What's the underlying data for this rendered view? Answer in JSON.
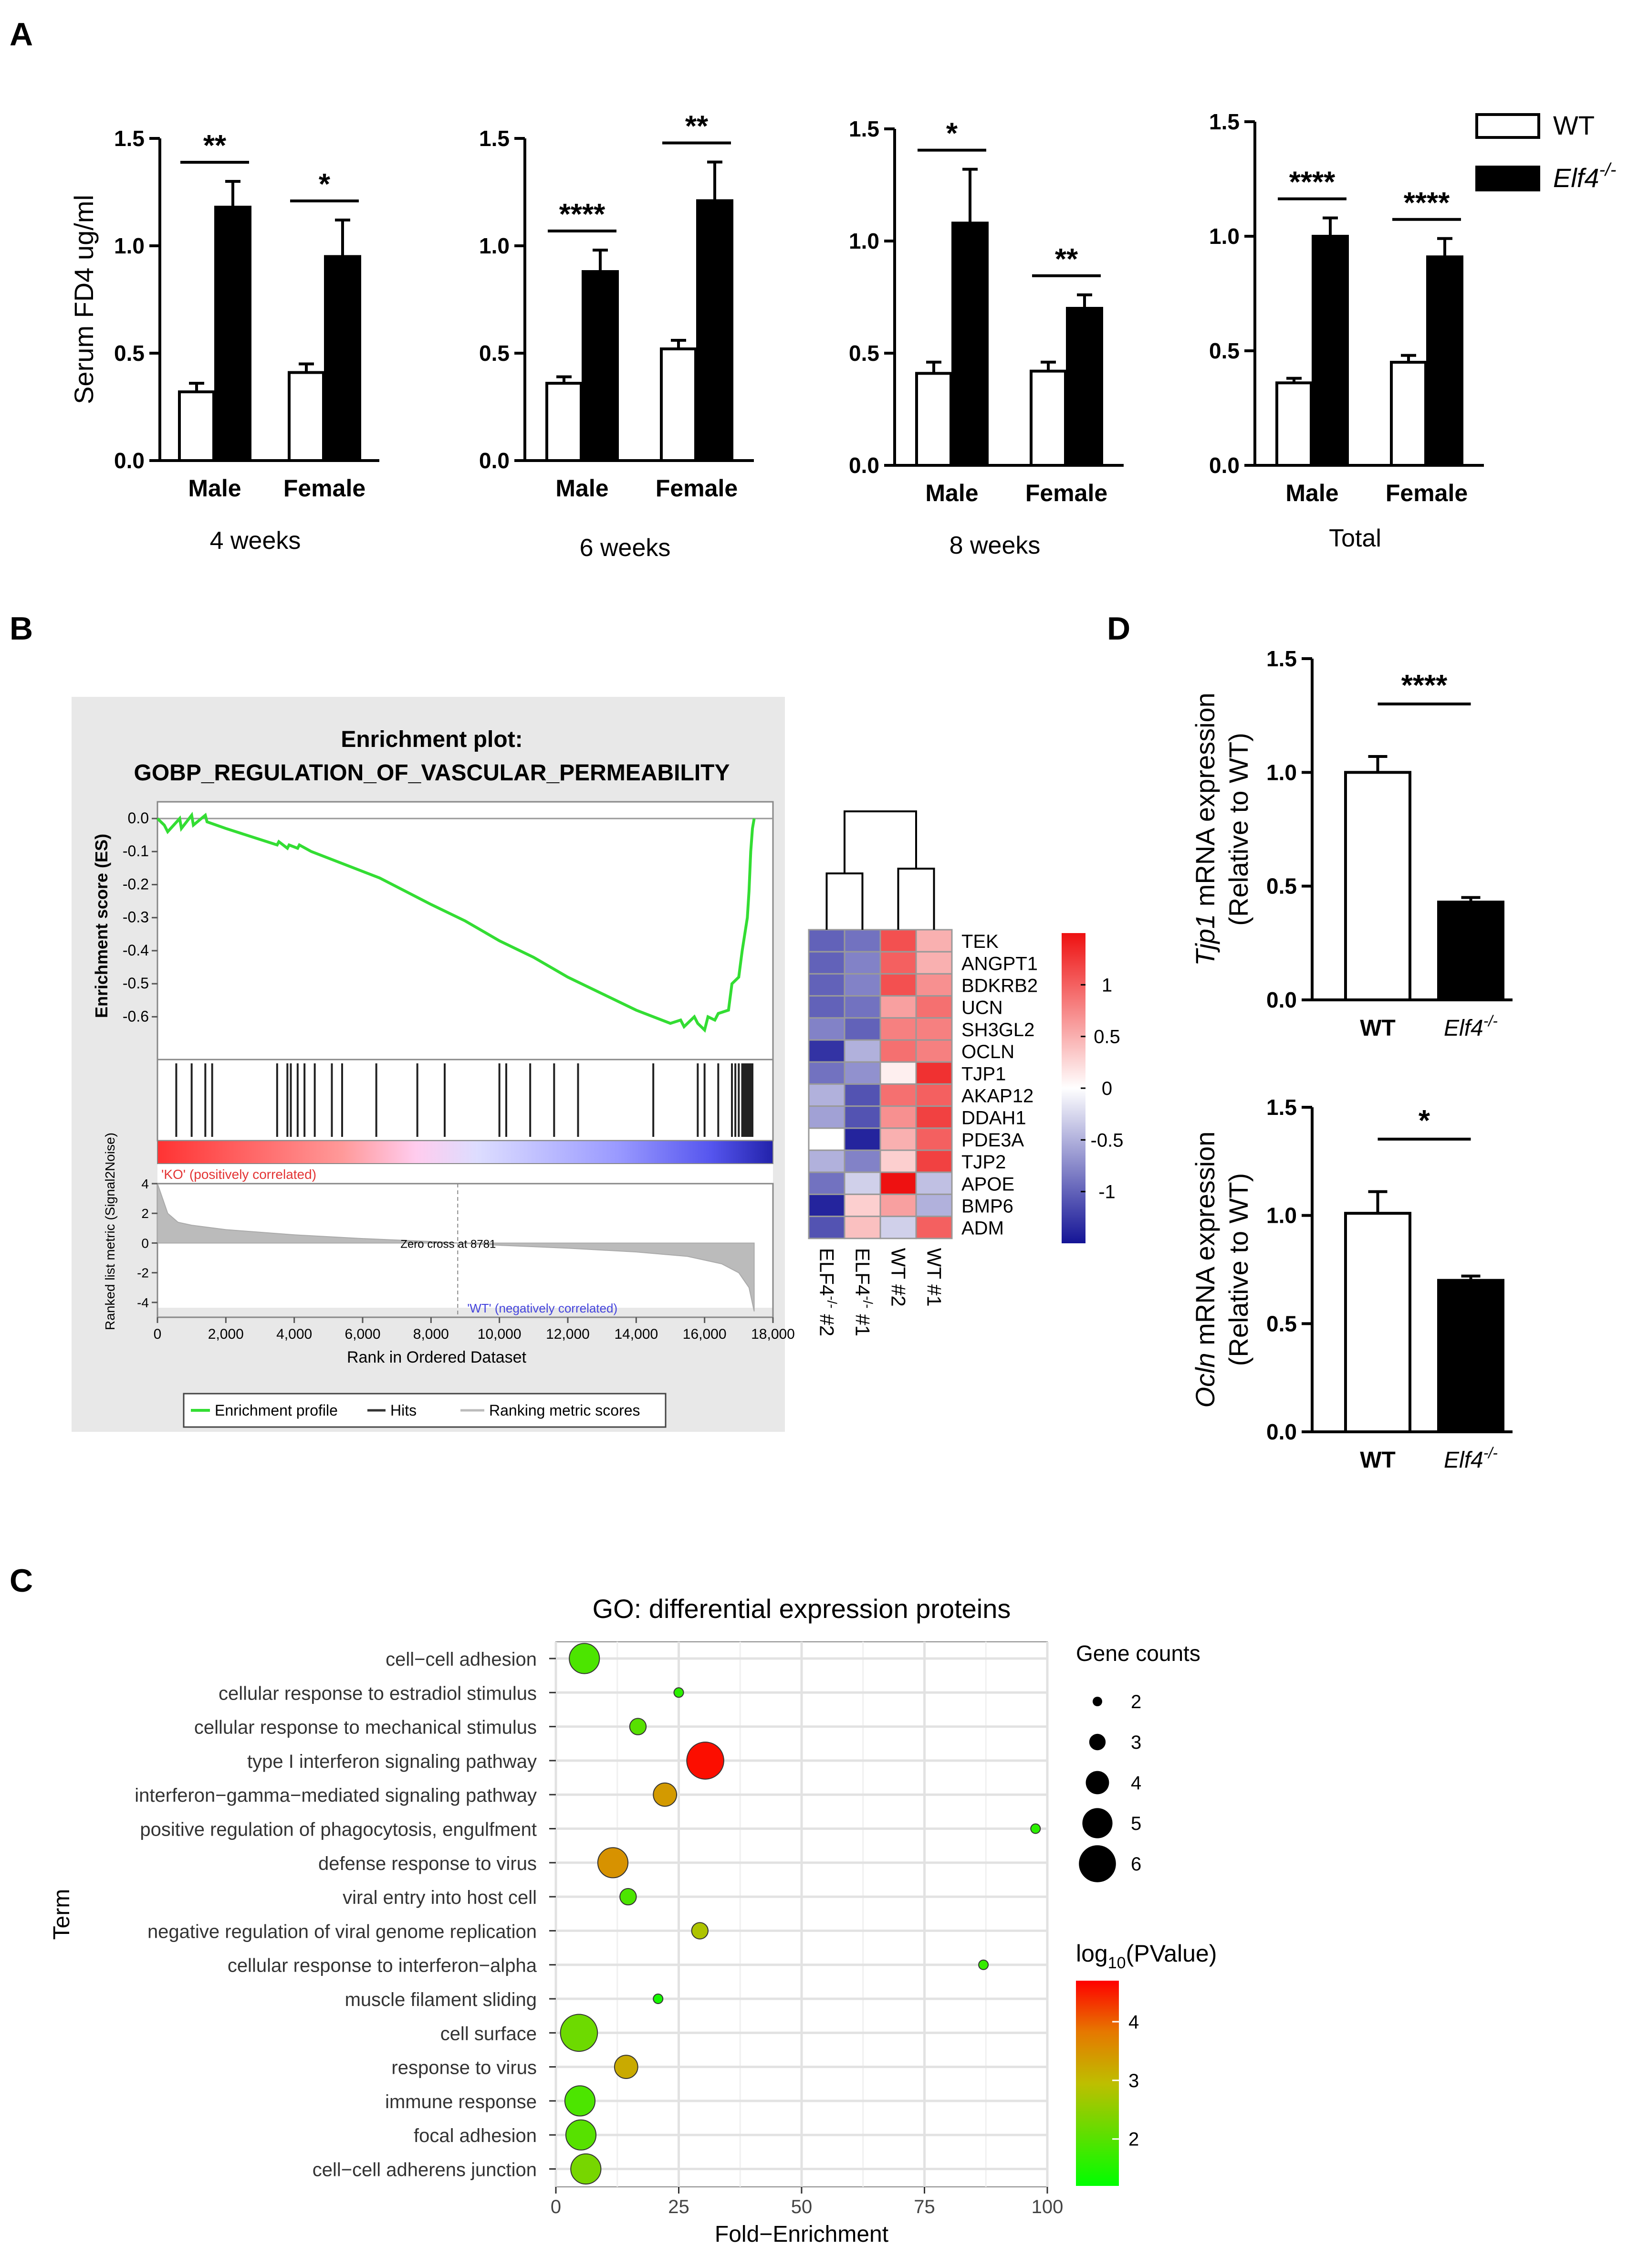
{
  "panel_labels": {
    "A": "A",
    "B": "B",
    "C": "C",
    "D": "D"
  },
  "legend_A": {
    "wt": "WT",
    "ko_base": "Elf4",
    "ko_sup": "-/-"
  },
  "chart_data": [
    {
      "id": "A1",
      "type": "bar",
      "xlabel": "4 weeks",
      "ylabel": "Serum FD4 ug/ml",
      "ylim": [
        0,
        1.5
      ],
      "ticks": [
        "0.0",
        "0.5",
        "1.0",
        "1.5"
      ],
      "categories": [
        "Male",
        "Female"
      ],
      "series": [
        {
          "name": "WT",
          "values": [
            0.32,
            0.41
          ],
          "errors": [
            0.04,
            0.04
          ]
        },
        {
          "name": "Elf4-/-",
          "values": [
            1.18,
            0.95
          ],
          "errors": [
            0.12,
            0.17
          ]
        }
      ],
      "significance": [
        "**",
        "*"
      ]
    },
    {
      "id": "A2",
      "type": "bar",
      "xlabel": "6 weeks",
      "ylabel": "",
      "ylim": [
        0,
        1.5
      ],
      "ticks": [
        "0.0",
        "0.5",
        "1.0",
        "1.5"
      ],
      "categories": [
        "Male",
        "Female"
      ],
      "series": [
        {
          "name": "WT",
          "values": [
            0.36,
            0.52
          ],
          "errors": [
            0.03,
            0.04
          ]
        },
        {
          "name": "Elf4-/-",
          "values": [
            0.88,
            1.21
          ],
          "errors": [
            0.1,
            0.18
          ]
        }
      ],
      "significance": [
        "****",
        "**"
      ]
    },
    {
      "id": "A3",
      "type": "bar",
      "xlabel": "8 weeks",
      "ylabel": "",
      "ylim": [
        0,
        1.5
      ],
      "ticks": [
        "0.0",
        "0.5",
        "1.0",
        "1.5"
      ],
      "categories": [
        "Male",
        "Female"
      ],
      "series": [
        {
          "name": "WT",
          "values": [
            0.41,
            0.42
          ],
          "errors": [
            0.05,
            0.04
          ]
        },
        {
          "name": "Elf4-/-",
          "values": [
            1.08,
            0.7
          ],
          "errors": [
            0.24,
            0.06
          ]
        }
      ],
      "significance": [
        "*",
        "**"
      ]
    },
    {
      "id": "A4",
      "type": "bar",
      "xlabel": "Total",
      "ylabel": "",
      "ylim": [
        0,
        1.5
      ],
      "ticks": [
        "0.0",
        "0.5",
        "1.0",
        "1.5"
      ],
      "categories": [
        "Male",
        "Female"
      ],
      "series": [
        {
          "name": "WT",
          "values": [
            0.36,
            0.45
          ],
          "errors": [
            0.02,
            0.03
          ]
        },
        {
          "name": "Elf4-/-",
          "values": [
            1.0,
            0.91
          ],
          "errors": [
            0.08,
            0.08
          ]
        }
      ],
      "significance": [
        "****",
        "****"
      ]
    },
    {
      "id": "B_gsea",
      "type": "line",
      "title": "Enrichment plot:",
      "subtitle": "GOBP_REGULATION_OF_VASCULAR_PERMEABILITY",
      "ylabel": "Enrichment score (ES)",
      "ylabel2": "Ranked list metric (Signal2Noise)",
      "xlabel": "Rank in Ordered Dataset",
      "xlim": [
        0,
        18000
      ],
      "ylim": [
        -0.65,
        0.0
      ],
      "ylim2": [
        -5,
        4
      ],
      "x_ticks": [
        "0",
        "2,000",
        "4,000",
        "6,000",
        "8,000",
        "10,000",
        "12,000",
        "14,000",
        "16,000",
        "18,000"
      ],
      "y_ticks": [
        "0.0",
        "-0.1",
        "-0.2",
        "-0.3",
        "-0.4",
        "-0.5",
        "-0.6"
      ],
      "y2_ticks": [
        "4",
        "2",
        "0",
        "-2",
        "-4"
      ],
      "es_x": [
        0,
        200,
        300,
        650,
        700,
        1000,
        1050,
        1400,
        1450,
        2000,
        3500,
        3550,
        3800,
        3850,
        4100,
        4150,
        4500,
        6500,
        8000,
        9000,
        10000,
        11000,
        12000,
        13000,
        14000,
        15000,
        15300,
        15400,
        15700,
        15800,
        16000,
        16100,
        16300,
        16400,
        16700,
        16800,
        17000,
        17100,
        17250,
        17300,
        17350,
        17400,
        17450
      ],
      "es_y": [
        0.0,
        -0.02,
        -0.04,
        0.0,
        -0.03,
        0.01,
        -0.02,
        0.01,
        -0.01,
        -0.03,
        -0.08,
        -0.07,
        -0.09,
        -0.08,
        -0.09,
        -0.08,
        -0.1,
        -0.18,
        -0.26,
        -0.31,
        -0.37,
        -0.42,
        -0.48,
        -0.53,
        -0.58,
        -0.62,
        -0.61,
        -0.63,
        -0.6,
        -0.62,
        -0.64,
        -0.6,
        -0.61,
        -0.59,
        -0.58,
        -0.5,
        -0.48,
        -0.4,
        -0.3,
        -0.22,
        -0.1,
        -0.03,
        0.0
      ],
      "hits": [
        550,
        1000,
        1400,
        1600,
        3500,
        3800,
        3900,
        4100,
        4300,
        4600,
        5100,
        5400,
        6400,
        7600,
        8400,
        10000,
        10200,
        10900,
        11600,
        12300,
        14500,
        15800,
        16000,
        16400,
        16800,
        16900,
        17000,
        17100,
        17150,
        17200,
        17250,
        17300,
        17350,
        17400
      ],
      "metric_x": [
        0,
        300,
        600,
        1000,
        2000,
        4000,
        6000,
        8000,
        8781,
        10000,
        12000,
        14000,
        15500,
        16500,
        17000,
        17300,
        17450
      ],
      "metric_y": [
        4.0,
        2.0,
        1.4,
        1.2,
        0.9,
        0.55,
        0.3,
        0.1,
        0.0,
        -0.15,
        -0.35,
        -0.6,
        -0.9,
        -1.4,
        -2.0,
        -3.0,
        -4.6
      ],
      "zero_cross": 8781,
      "annotations": {
        "ko": "'KO' (positively correlated)",
        "wt": "'WT' (negatively correlated)",
        "zero": "Zero cross at 8781"
      },
      "legend": [
        "Enrichment profile",
        "Hits",
        "Ranking metric scores"
      ]
    },
    {
      "id": "B_heatmap",
      "type": "heatmap",
      "rows": [
        "TEK",
        "ANGPT1",
        "BDKRB2",
        "UCN",
        "SH3GL2",
        "OCLN",
        "TJP1",
        "AKAP12",
        "DDAH1",
        "PDE3A",
        "TJP2",
        "APOE",
        "BMP6",
        "ADM"
      ],
      "columns": [
        {
          "base": "ELF4",
          "sup": "-/-",
          "suffix": " #2"
        },
        {
          "base": "ELF4",
          "sup": "-/-",
          "suffix": " #1"
        },
        {
          "base": "WT #2",
          "sup": "",
          "suffix": ""
        },
        {
          "base": "WT #1",
          "sup": "",
          "suffix": ""
        }
      ],
      "values": [
        [
          -1.0,
          -0.9,
          1.1,
          0.5
        ],
        [
          -1.0,
          -0.8,
          1.0,
          0.5
        ],
        [
          -1.0,
          -0.8,
          1.1,
          0.7
        ],
        [
          -1.0,
          -0.9,
          0.6,
          0.9
        ],
        [
          -0.8,
          -1.0,
          0.8,
          0.8
        ],
        [
          -1.3,
          -0.5,
          0.9,
          0.8
        ],
        [
          -0.9,
          -0.7,
          0.1,
          1.3
        ],
        [
          -0.5,
          -1.1,
          0.9,
          1.0
        ],
        [
          -0.6,
          -1.1,
          0.7,
          1.2
        ],
        [
          0.0,
          -1.4,
          0.5,
          1.0
        ],
        [
          -0.5,
          -0.8,
          0.3,
          1.2
        ],
        [
          -0.9,
          -0.3,
          1.5,
          -0.4
        ],
        [
          -1.4,
          0.3,
          0.6,
          -0.5
        ],
        [
          -1.1,
          0.4,
          -0.3,
          1.0
        ]
      ],
      "scale": [
        -1.5,
        1.5
      ],
      "scale_ticks": [
        "1",
        "0.5",
        "0",
        "-0.5",
        "-1"
      ],
      "scale_tick_values": [
        1,
        0.5,
        0,
        -0.5,
        -1
      ]
    },
    {
      "id": "C",
      "type": "scatter",
      "title": "GO: differential expression proteins",
      "xlabel": "Fold−Enrichment",
      "ylabel": "Term",
      "xlim": [
        0,
        100
      ],
      "x_ticks": [
        0,
        25,
        50,
        75,
        100
      ],
      "terms": [
        "cell−cell adhesion",
        "cellular response to estradiol stimulus",
        "cellular response to mechanical stimulus",
        "type I interferon signaling pathway",
        "interferon−gamma−mediated signaling pathway",
        "positive regulation of phagocytosis, engulfment",
        "defense response to virus",
        "viral entry into host cell",
        "negative regulation of viral genome replication",
        "cellular response to interferon−alpha",
        "muscle filament sliding",
        "cell surface",
        "response to virus",
        "immune response",
        "focal adhesion",
        "cell−cell adherens junction"
      ],
      "fold_enrichment": [
        5.8,
        25.0,
        16.7,
        30.4,
        22.2,
        97.6,
        11.6,
        14.7,
        29.3,
        87.0,
        20.8,
        4.7,
        14.3,
        4.9,
        5.1,
        6.1
      ],
      "gene_counts": [
        5,
        2,
        3,
        6,
        4,
        2,
        5,
        3,
        3,
        2,
        2,
        6,
        4,
        5,
        5,
        5
      ],
      "log10_pvalue": [
        1.9,
        1.6,
        2.0,
        4.6,
        3.4,
        1.6,
        3.5,
        1.9,
        2.8,
        1.7,
        1.4,
        2.2,
        3.2,
        1.9,
        2.0,
        2.3
      ],
      "size_legend_title": "Gene counts",
      "size_legend": [
        2,
        3,
        4,
        5,
        6
      ],
      "color_legend_title": "log10(PValue)",
      "color_legend_title_base": "log",
      "color_legend_title_sub": "10",
      "color_legend_title_rest": "(PValue)",
      "color_ticks": [
        2,
        3,
        4
      ],
      "color_range": [
        1.2,
        4.7
      ]
    },
    {
      "id": "D1",
      "type": "bar",
      "ylabel_gene": "Tjp1",
      "ylabel_rest": " mRNA expression",
      "ylabel2": "(Relative to WT)",
      "ylim": [
        0,
        1.5
      ],
      "ticks": [
        "0.0",
        "0.5",
        "1.0",
        "1.5"
      ],
      "categories": [
        "WT",
        "Elf4-/-"
      ],
      "values": [
        1.0,
        0.43
      ],
      "errors": [
        0.07,
        0.02
      ],
      "significance": "****"
    },
    {
      "id": "D2",
      "type": "bar",
      "ylabel_gene": "Ocln",
      "ylabel_rest": " mRNA expression",
      "ylabel2": "(Relative to WT)",
      "ylim": [
        0,
        1.5
      ],
      "ticks": [
        "0.0",
        "0.5",
        "1.0",
        "1.5"
      ],
      "categories": [
        "WT",
        "Elf4-/-"
      ],
      "values": [
        1.01,
        0.7
      ],
      "errors": [
        0.1,
        0.02
      ],
      "significance": "*"
    }
  ]
}
